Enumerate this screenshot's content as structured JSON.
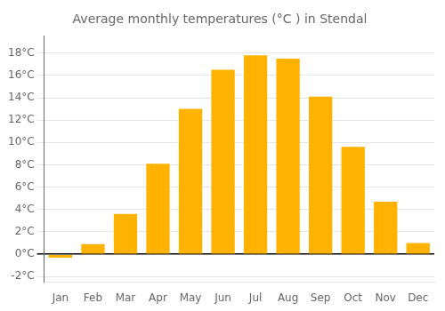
{
  "chart_data": {
    "type": "bar",
    "title": "Average monthly temperatures (°C ) in Stendal",
    "categories": [
      "Jan",
      "Feb",
      "Mar",
      "Apr",
      "May",
      "Jun",
      "Jul",
      "Aug",
      "Sep",
      "Oct",
      "Nov",
      "Dec"
    ],
    "values": [
      -0.3,
      0.9,
      3.6,
      8.1,
      13.0,
      16.5,
      17.8,
      17.5,
      14.1,
      9.6,
      4.7,
      1.0
    ],
    "color": "#FFB300",
    "ylim": [
      -2.5,
      19.5
    ],
    "yticks": [
      {
        "value": -2,
        "label": "-2°C"
      },
      {
        "value": 0,
        "label": "0°C"
      },
      {
        "value": 2,
        "label": "2°C"
      },
      {
        "value": 4,
        "label": "4°C"
      },
      {
        "value": 6,
        "label": "6°C"
      },
      {
        "value": 8,
        "label": "8°C"
      },
      {
        "value": 10,
        "label": "10°C"
      },
      {
        "value": 12,
        "label": "12°C"
      },
      {
        "value": 14,
        "label": "14°C"
      },
      {
        "value": 16,
        "label": "16°C"
      },
      {
        "value": 18,
        "label": "18°C"
      }
    ],
    "grid": true
  }
}
